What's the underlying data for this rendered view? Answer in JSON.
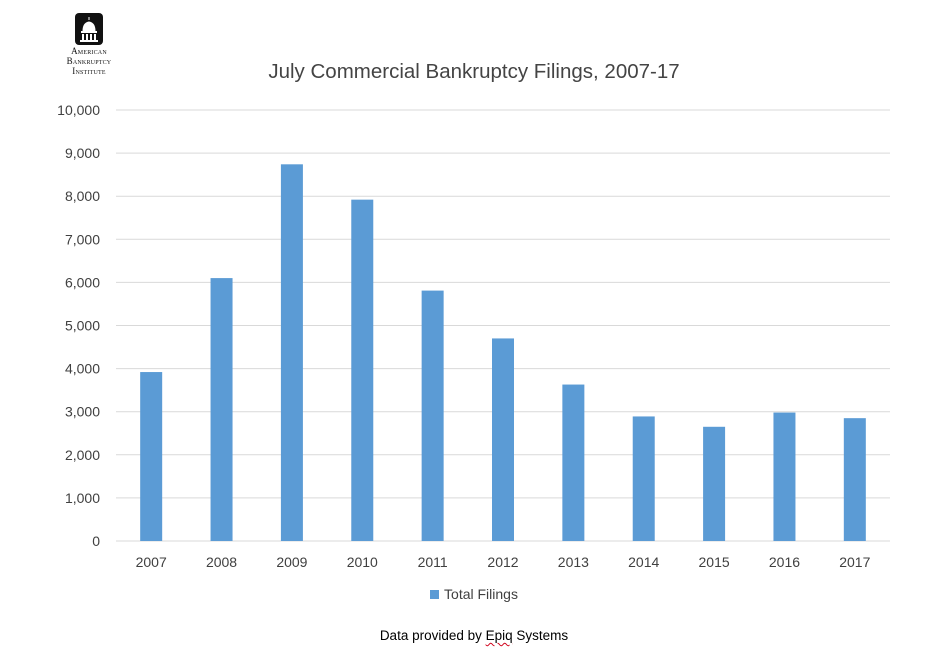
{
  "logo": {
    "lines": [
      "American",
      "Bankruptcy",
      "Institute"
    ]
  },
  "chart_data": {
    "type": "bar",
    "title": "July Commercial Bankruptcy Filings, 2007-17",
    "xlabel": "",
    "ylabel": "",
    "categories": [
      "2007",
      "2008",
      "2009",
      "2010",
      "2011",
      "2012",
      "2013",
      "2014",
      "2015",
      "2016",
      "2017"
    ],
    "series": [
      {
        "name": "Total Filings",
        "color": "#5b9bd5",
        "values": [
          3920,
          6100,
          8740,
          7920,
          5810,
          4700,
          3630,
          2890,
          2650,
          2980,
          2850
        ]
      }
    ],
    "ylim": [
      0,
      10000
    ],
    "yticks": [
      "0",
      "1,000",
      "2,000",
      "3,000",
      "4,000",
      "5,000",
      "6,000",
      "7,000",
      "8,000",
      "9,000",
      "10,000"
    ],
    "grid": true,
    "legend_position": "bottom"
  },
  "footer": {
    "source_prefix": "Data provided by ",
    "source_underlined": "Epiq",
    "source_suffix": " Systems"
  },
  "colors": {
    "bar": "#5b9bd5",
    "gridline": "#d9d9d9",
    "axis_text": "#404040"
  }
}
